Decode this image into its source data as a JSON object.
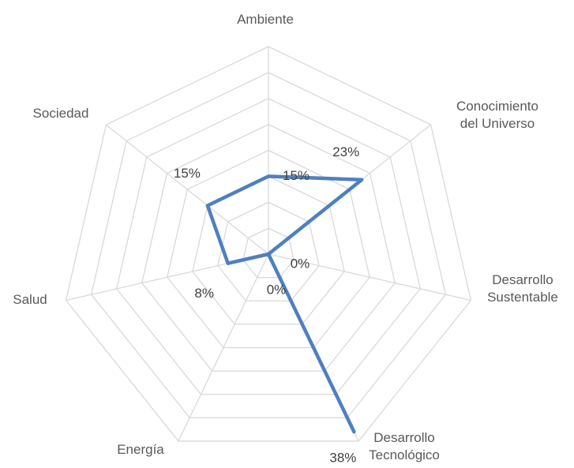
{
  "chart_data": {
    "type": "radar",
    "categories": [
      "Ambiente",
      "Conocimiento del Universo",
      "Desarrollo Sustentable",
      "Desarrollo Tecnológico",
      "Energía",
      "Salud",
      "Sociedad"
    ],
    "series": [
      {
        "color": "#4f7fbf",
        "values": [
          15,
          23,
          0,
          38,
          0,
          8,
          15
        ],
        "value_labels": [
          "15%",
          "23%",
          "0%",
          "38%",
          "0%",
          "8%",
          "15%"
        ]
      }
    ],
    "ylim": [
      0,
      40
    ],
    "yticks": [
      0,
      5,
      10,
      15,
      20,
      25,
      30,
      35,
      40
    ],
    "grid": true
  }
}
